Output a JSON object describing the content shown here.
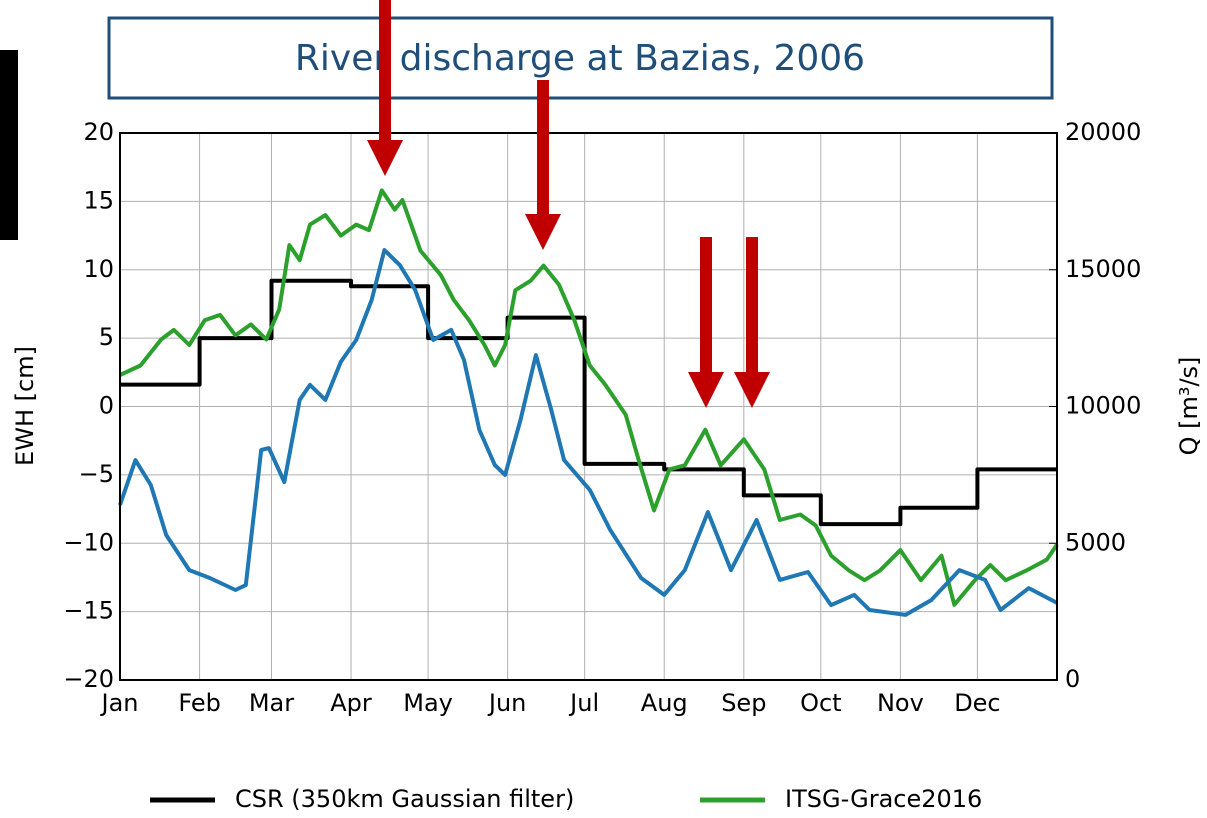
{
  "chart_data": {
    "type": "line",
    "title": "River discharge at Bazias, 2006",
    "ylabel": "EWH [cm]",
    "y2label": "Q [m³/s]",
    "xlim": [
      0,
      365
    ],
    "xticks": [
      {
        "value": 0,
        "label": "Jan"
      },
      {
        "value": 31,
        "label": "Feb"
      },
      {
        "value": 59,
        "label": "Mar"
      },
      {
        "value": 90,
        "label": "Apr"
      },
      {
        "value": 120,
        "label": "May"
      },
      {
        "value": 151,
        "label": "Jun"
      },
      {
        "value": 181,
        "label": "Jul"
      },
      {
        "value": 212,
        "label": "Aug"
      },
      {
        "value": 243,
        "label": "Sep"
      },
      {
        "value": 273,
        "label": "Oct"
      },
      {
        "value": 304,
        "label": "Nov"
      },
      {
        "value": 334,
        "label": "Dec"
      }
    ],
    "ylim": [
      -20,
      20
    ],
    "yticks": [
      {
        "value": -20,
        "label": "−20"
      },
      {
        "value": -15,
        "label": "−15"
      },
      {
        "value": -10,
        "label": "−10"
      },
      {
        "value": -5,
        "label": "−5"
      },
      0,
      5,
      10,
      15,
      20
    ],
    "y2lim": [
      0,
      20000
    ],
    "y2ticks": [
      0,
      5000,
      10000,
      15000,
      20000
    ],
    "grid": true,
    "series": [
      {
        "name": "CSR (350km Gaussian filter)",
        "color": "#000000",
        "x": [
          0,
          31,
          31,
          59,
          59,
          90,
          90,
          120,
          120,
          151,
          151,
          181,
          181,
          212,
          212,
          243,
          243,
          273,
          273,
          304,
          304,
          334,
          334,
          365
        ],
        "values": [
          1.6,
          1.6,
          5.0,
          5.0,
          9.2,
          9.2,
          8.8,
          8.8,
          5.0,
          5.0,
          6.5,
          6.5,
          -4.2,
          -4.2,
          -4.6,
          -4.6,
          -6.5,
          -6.5,
          -8.6,
          -8.6,
          -7.4,
          -7.4,
          -4.6,
          -4.6
        ]
      },
      {
        "name": "ITSG-Grace2016",
        "color": "#2ca02c",
        "x": [
          0,
          8,
          16,
          21,
          27,
          33,
          39,
          45,
          51,
          57,
          62,
          66,
          70,
          74,
          80,
          86,
          92,
          97,
          102,
          107,
          110,
          117,
          125,
          130,
          136,
          142,
          146,
          150,
          154,
          160,
          165,
          171,
          177,
          183,
          189,
          197,
          202,
          208,
          214,
          220,
          228,
          234,
          243,
          251,
          257,
          265,
          271,
          277,
          284,
          290,
          296,
          304,
          312,
          320,
          325,
          333,
          339,
          345,
          353,
          361,
          365
        ],
        "values": [
          2.3,
          3.0,
          4.9,
          5.6,
          4.5,
          6.3,
          6.7,
          5.2,
          6.0,
          4.9,
          7.1,
          11.8,
          10.7,
          13.3,
          14.0,
          12.5,
          13.3,
          12.9,
          15.8,
          14.4,
          15.1,
          11.4,
          9.6,
          7.8,
          6.3,
          4.5,
          3.0,
          4.5,
          8.5,
          9.2,
          10.3,
          8.9,
          6.3,
          3.0,
          1.6,
          -0.6,
          -3.9,
          -7.6,
          -4.6,
          -4.3,
          -1.7,
          -4.3,
          -2.4,
          -4.6,
          -8.3,
          -7.9,
          -8.7,
          -10.9,
          -12.0,
          -12.7,
          -12.0,
          -10.5,
          -12.7,
          -10.9,
          -14.5,
          -12.7,
          -11.6,
          -12.7,
          -12.0,
          -11.2,
          -10.1
        ]
      },
      {
        "color": "#1f77b4",
        "axis": "y2",
        "x": [
          0,
          6,
          12,
          18,
          27,
          35,
          45,
          49,
          55,
          58,
          64,
          70,
          74,
          80,
          86,
          92,
          98,
          103,
          109,
          115,
          122,
          129,
          134,
          140,
          146,
          150,
          156,
          162,
          168,
          173,
          183,
          191,
          203,
          212,
          220,
          229,
          238,
          248,
          257,
          268,
          277,
          286,
          292,
          306,
          316,
          327,
          337,
          343,
          354,
          365
        ],
        "values": [
          6400,
          8040,
          7130,
          5300,
          4020,
          3730,
          3290,
          3470,
          8410,
          8480,
          7240,
          10240,
          10790,
          10240,
          11630,
          12430,
          13890,
          15720,
          15170,
          14260,
          12430,
          12800,
          11700,
          9140,
          7860,
          7500,
          9510,
          11880,
          9870,
          8040,
          6950,
          5480,
          3730,
          3110,
          4020,
          6140,
          4020,
          5850,
          3660,
          3950,
          2740,
          3110,
          2560,
          2380,
          2920,
          4020,
          3660,
          2560,
          3360,
          2820
        ]
      }
    ]
  }
}
